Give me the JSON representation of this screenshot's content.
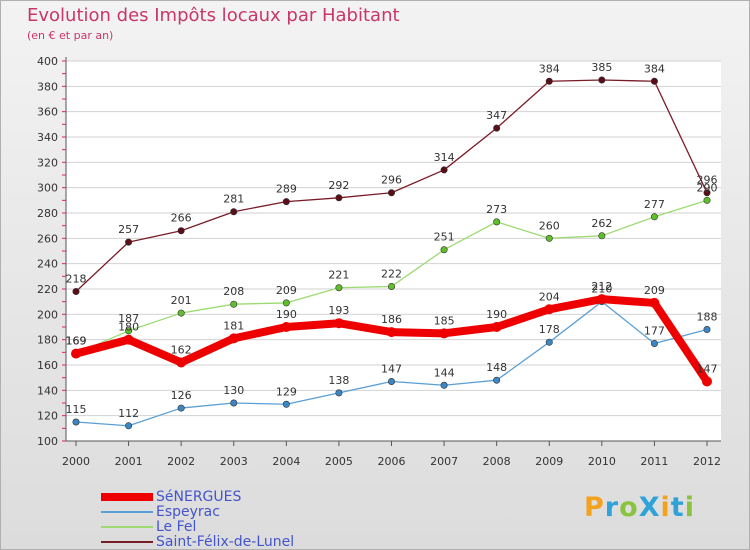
{
  "title": "Evolution des Impôts locaux par Habitant",
  "subtitle": "(en € et par an)",
  "brand": {
    "text": "ProXiti",
    "letters": [
      {
        "ch": "P",
        "color": "#f4a21e"
      },
      {
        "ch": "r",
        "color": "#2fa3d8"
      },
      {
        "ch": "o",
        "color": "#8ac43f"
      },
      {
        "ch": "X",
        "color": "#2fa3d8"
      },
      {
        "ch": "i",
        "color": "#f4a21e"
      },
      {
        "ch": "t",
        "color": "#2fa3d8"
      },
      {
        "ch": "i",
        "color": "#8ac43f"
      }
    ]
  },
  "chart_data": {
    "type": "line",
    "title": "Evolution des Impôts locaux par Habitant",
    "subtitle": "(en € et par an)",
    "xlabel": "",
    "ylabel": "",
    "ylim": [
      100,
      400
    ],
    "yticks": [
      100,
      120,
      140,
      160,
      180,
      200,
      220,
      240,
      260,
      280,
      300,
      320,
      340,
      360,
      380,
      400
    ],
    "grid": true,
    "legend": "bottom-left",
    "x": [
      "2000",
      "2001",
      "2002",
      "2003",
      "2004",
      "2005",
      "2006",
      "2007",
      "2008",
      "2009",
      "2010",
      "2011",
      "2012"
    ],
    "series": [
      {
        "name": "Saint-Félix-de-Lunel",
        "color": "#7a1b28",
        "marker": "#5a0f18",
        "values": [
          218,
          257,
          266,
          281,
          289,
          292,
          296,
          314,
          347,
          384,
          385,
          384,
          296
        ]
      },
      {
        "name": "Le Fel",
        "color": "#9ddb72",
        "marker": "#5fbf2a",
        "values": [
          169,
          187,
          201,
          208,
          209,
          221,
          222,
          251,
          273,
          260,
          262,
          277,
          290
        ]
      },
      {
        "name": "Espeyrac",
        "color": "#5b9fd4",
        "marker": "#3d86c6",
        "values": [
          115,
          112,
          126,
          130,
          129,
          138,
          147,
          144,
          148,
          178,
          210,
          177,
          188
        ]
      },
      {
        "name": "SéNERGUES",
        "color": "#ee0000",
        "marker": "#ee0000",
        "values": [
          169,
          180,
          162,
          181,
          190,
          193,
          186,
          185,
          190,
          204,
          212,
          209,
          147
        ]
      }
    ],
    "legend_order": [
      "SéNERGUES",
      "Espeyrac",
      "Le Fel",
      "Saint-Félix-de-Lunel"
    ]
  }
}
